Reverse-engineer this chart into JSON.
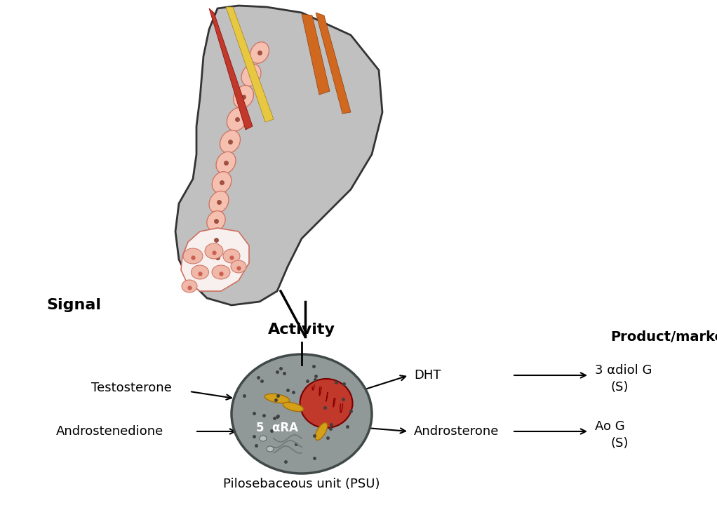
{
  "bg_color": "#ffffff",
  "signal_label": "Signal",
  "activity_label": "Activity",
  "product_marker_label": "Product/marker",
  "psu_label": "Pilosebaceous unit (PSU)",
  "testosterone_label": "Testosterone",
  "androstenedione_label": "Androstenedione",
  "dht_label": "DHT",
  "androsterone_label": "Androsterone",
  "marker1_line1": "3 αdiol G",
  "marker1_line2": "(S)",
  "marker2_line1": "Ao G",
  "marker2_line2": "(S)",
  "enzyme_label": "5  αRA",
  "follicle_gray": "#c0c0c0",
  "follicle_border": "#333333",
  "sebaceous_white": "#f8f0ee",
  "cell_pink": "#f5c0b0",
  "cell_border": "#cc7060",
  "hair_red": "#c0392b",
  "hair_yellow": "#e8c840",
  "hair_orange": "#d06820",
  "psu_cell_color": "#909898",
  "psu_cell_border": "#404848",
  "nucleus_fill": "#c0392b",
  "nucleus_border": "#7a0000",
  "organelle_fill": "#d4a017",
  "organelle_border": "#a07010",
  "dot_color": "#404040",
  "text_color": "#000000",
  "arrow_color": "#000000",
  "line_color": "#000000"
}
